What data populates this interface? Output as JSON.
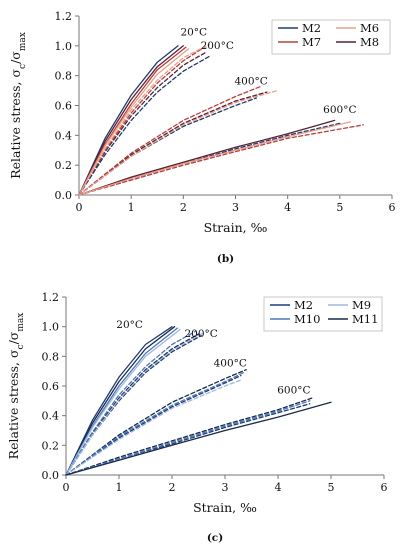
{
  "chart_data": [
    {
      "type": "line",
      "panel_label": "(b)",
      "xlabel": "Strain, ‰",
      "ylabel_main": "Relative stress, σ",
      "ylabel_sub1": "c",
      "ylabel_mid": "/σ",
      "ylabel_sub2": "max",
      "xlim": [
        0,
        6
      ],
      "ylim": [
        0,
        1.2
      ],
      "xticks": [
        "0",
        "1",
        "2",
        "3",
        "4",
        "5",
        "6"
      ],
      "yticks": [
        "0.0",
        "0.2",
        "0.4",
        "0.6",
        "0.8",
        "1.0",
        "1.2"
      ],
      "grid": false,
      "legend_position": "top-right",
      "legend": [
        {
          "label": "M2",
          "color": "#1f3b73"
        },
        {
          "label": "M6",
          "color": "#e8a08a"
        },
        {
          "label": "M7",
          "color": "#b5403f"
        },
        {
          "label": "M8",
          "color": "#5a2030"
        }
      ],
      "annotations": [
        {
          "text": "20°C",
          "x": 2.2,
          "y": 1.07
        },
        {
          "text": "200°C",
          "x": 2.65,
          "y": 0.98
        },
        {
          "text": "400°C",
          "x": 3.3,
          "y": 0.74
        },
        {
          "text": "600°C",
          "x": 5.0,
          "y": 0.55
        }
      ],
      "series": [
        {
          "group": "20°C",
          "style": "solid",
          "color": "#1f3b73",
          "x": [
            0,
            0.5,
            1.0,
            1.5,
            1.9
          ],
          "y": [
            0,
            0.38,
            0.67,
            0.89,
            1.0
          ]
        },
        {
          "group": "20°C",
          "style": "solid",
          "color": "#5a2030",
          "x": [
            0,
            0.5,
            1.0,
            1.5,
            2.0
          ],
          "y": [
            0,
            0.36,
            0.64,
            0.86,
            1.0
          ]
        },
        {
          "group": "20°C",
          "style": "solid",
          "color": "#b5403f",
          "x": [
            0,
            0.5,
            1.0,
            1.5,
            2.05
          ],
          "y": [
            0,
            0.34,
            0.61,
            0.84,
            0.99
          ]
        },
        {
          "group": "20°C",
          "style": "solid",
          "color": "#e8a08a",
          "x": [
            0,
            0.5,
            1.0,
            1.5,
            2.1
          ],
          "y": [
            0,
            0.33,
            0.59,
            0.81,
            0.98
          ]
        },
        {
          "group": "200°C",
          "style": "dashed",
          "color": "#1f3b73",
          "x": [
            0,
            0.5,
            1.0,
            1.5,
            2.0,
            2.5
          ],
          "y": [
            0,
            0.27,
            0.5,
            0.69,
            0.83,
            0.93
          ]
        },
        {
          "group": "200°C",
          "style": "dashed",
          "color": "#5a2030",
          "x": [
            0,
            0.5,
            1.0,
            1.5,
            2.0,
            2.45
          ],
          "y": [
            0,
            0.29,
            0.53,
            0.72,
            0.87,
            0.96
          ]
        },
        {
          "group": "200°C",
          "style": "dashed",
          "color": "#b5403f",
          "x": [
            0,
            0.5,
            1.0,
            1.5,
            2.0,
            2.4
          ],
          "y": [
            0,
            0.3,
            0.55,
            0.75,
            0.9,
            0.99
          ]
        },
        {
          "group": "200°C",
          "style": "dashed",
          "color": "#e8a08a",
          "x": [
            0,
            0.5,
            1.0,
            1.5,
            2.0,
            2.5
          ],
          "y": [
            0,
            0.31,
            0.57,
            0.77,
            0.92,
            1.01
          ]
        },
        {
          "group": "400°C",
          "style": "dashed",
          "color": "#1f3b73",
          "x": [
            0,
            1.0,
            2.0,
            3.0,
            3.4
          ],
          "y": [
            0,
            0.26,
            0.46,
            0.6,
            0.65
          ]
        },
        {
          "group": "400°C",
          "style": "dashed",
          "color": "#5a2030",
          "x": [
            0,
            1.0,
            2.0,
            3.0,
            3.6
          ],
          "y": [
            0,
            0.27,
            0.48,
            0.63,
            0.69
          ]
        },
        {
          "group": "400°C",
          "style": "dashed",
          "color": "#b5403f",
          "x": [
            0,
            1.0,
            2.0,
            3.0,
            3.5
          ],
          "y": [
            0,
            0.28,
            0.5,
            0.66,
            0.73
          ]
        },
        {
          "group": "400°C",
          "style": "dashed",
          "color": "#e8a08a",
          "x": [
            0,
            1.0,
            2.0,
            3.0,
            3.8
          ],
          "y": [
            0,
            0.26,
            0.47,
            0.62,
            0.7
          ]
        },
        {
          "group": "600°C",
          "style": "dashed",
          "color": "#1f3b73",
          "x": [
            0,
            1.0,
            2.0,
            3.0,
            4.0,
            5.0
          ],
          "y": [
            0,
            0.11,
            0.21,
            0.31,
            0.4,
            0.48
          ]
        },
        {
          "group": "600°C",
          "style": "solid",
          "color": "#5a2030",
          "x": [
            0,
            1.0,
            2.0,
            3.0,
            4.0,
            4.9
          ],
          "y": [
            0,
            0.12,
            0.22,
            0.32,
            0.41,
            0.5
          ]
        },
        {
          "group": "600°C",
          "style": "dashed",
          "color": "#b5403f",
          "x": [
            0,
            1.0,
            2.0,
            3.0,
            4.0,
            5.45
          ],
          "y": [
            0,
            0.1,
            0.2,
            0.29,
            0.38,
            0.47
          ]
        },
        {
          "group": "600°C",
          "style": "solid",
          "color": "#e8a08a",
          "x": [
            0,
            1.0,
            2.0,
            3.0,
            4.0,
            5.2
          ],
          "y": [
            0,
            0.11,
            0.21,
            0.3,
            0.39,
            0.49
          ]
        }
      ]
    },
    {
      "type": "line",
      "panel_label": "(c)",
      "xlabel": "Strain, ‰",
      "ylabel_main": "Relative stress, σ",
      "ylabel_sub1": "c",
      "ylabel_mid": "/σ",
      "ylabel_sub2": "max",
      "xlim": [
        0,
        6
      ],
      "ylim": [
        0,
        1.2
      ],
      "xticks": [
        "0",
        "1",
        "2",
        "3",
        "4",
        "5",
        "6"
      ],
      "yticks": [
        "0.0",
        "0.2",
        "0.4",
        "0.6",
        "0.8",
        "1.0",
        "1.2"
      ],
      "grid": false,
      "legend_position": "top-right",
      "legend": [
        {
          "label": "M2",
          "color": "#1f3b73"
        },
        {
          "label": "M9",
          "color": "#9fb8e0"
        },
        {
          "label": "M10",
          "color": "#4a78b8"
        },
        {
          "label": "M11",
          "color": "#1a2a4a"
        }
      ],
      "annotations": [
        {
          "text": "20°C",
          "x": 1.2,
          "y": 0.99
        },
        {
          "text": "200°C",
          "x": 2.55,
          "y": 0.93
        },
        {
          "text": "400°C",
          "x": 3.1,
          "y": 0.73
        },
        {
          "text": "600°C",
          "x": 4.3,
          "y": 0.55
        }
      ],
      "series": [
        {
          "group": "20°C",
          "style": "solid",
          "color": "#1f3b73",
          "x": [
            0,
            0.5,
            1.0,
            1.5,
            2.0
          ],
          "y": [
            0,
            0.37,
            0.66,
            0.88,
            1.0
          ]
        },
        {
          "group": "20°C",
          "style": "solid",
          "color": "#1a2a4a",
          "x": [
            0,
            0.5,
            1.0,
            1.5,
            2.05
          ],
          "y": [
            0,
            0.35,
            0.63,
            0.85,
            1.0
          ]
        },
        {
          "group": "20°C",
          "style": "solid",
          "color": "#4a78b8",
          "x": [
            0,
            0.5,
            1.0,
            1.5,
            2.1
          ],
          "y": [
            0,
            0.33,
            0.6,
            0.82,
            0.99
          ]
        },
        {
          "group": "20°C",
          "style": "solid",
          "color": "#9fb8e0",
          "x": [
            0,
            0.5,
            1.0,
            1.5,
            2.15
          ],
          "y": [
            0,
            0.32,
            0.58,
            0.8,
            0.98
          ]
        },
        {
          "group": "200°C",
          "style": "dashed",
          "color": "#1f3b73",
          "x": [
            0,
            0.5,
            1.0,
            1.5,
            2.0,
            2.55
          ],
          "y": [
            0,
            0.27,
            0.5,
            0.69,
            0.83,
            0.94
          ]
        },
        {
          "group": "200°C",
          "style": "dashed",
          "color": "#1a2a4a",
          "x": [
            0,
            0.5,
            1.0,
            1.5,
            2.0,
            2.5
          ],
          "y": [
            0,
            0.28,
            0.52,
            0.71,
            0.85,
            0.95
          ]
        },
        {
          "group": "200°C",
          "style": "dashed",
          "color": "#4a78b8",
          "x": [
            0,
            0.5,
            1.0,
            1.5,
            2.0,
            2.45
          ],
          "y": [
            0,
            0.29,
            0.54,
            0.73,
            0.88,
            0.97
          ]
        },
        {
          "group": "200°C",
          "style": "dashed",
          "color": "#9fb8e0",
          "x": [
            0,
            0.5,
            1.0,
            1.5,
            2.0,
            2.6
          ],
          "y": [
            0,
            0.27,
            0.51,
            0.7,
            0.84,
            0.96
          ]
        },
        {
          "group": "400°C",
          "style": "dashed",
          "color": "#1f3b73",
          "x": [
            0,
            1.0,
            2.0,
            3.0,
            3.3
          ],
          "y": [
            0,
            0.25,
            0.46,
            0.62,
            0.67
          ]
        },
        {
          "group": "400°C",
          "style": "dashed",
          "color": "#1a2a4a",
          "x": [
            0,
            1.0,
            2.0,
            3.0,
            3.4
          ],
          "y": [
            0,
            0.27,
            0.49,
            0.65,
            0.71
          ]
        },
        {
          "group": "400°C",
          "style": "dashed",
          "color": "#4a78b8",
          "x": [
            0,
            1.0,
            2.0,
            3.0,
            3.35
          ],
          "y": [
            0,
            0.26,
            0.47,
            0.63,
            0.69
          ]
        },
        {
          "group": "400°C",
          "style": "dashed",
          "color": "#9fb8e0",
          "x": [
            0,
            1.0,
            2.0,
            3.0,
            3.3
          ],
          "y": [
            0,
            0.24,
            0.45,
            0.6,
            0.64
          ]
        },
        {
          "group": "600°C",
          "style": "dashed",
          "color": "#1f3b73",
          "x": [
            0,
            1.0,
            2.0,
            3.0,
            4.0,
            4.6
          ],
          "y": [
            0,
            0.11,
            0.21,
            0.32,
            0.42,
            0.48
          ]
        },
        {
          "group": "600°C",
          "style": "dashed",
          "color": "#1a2a4a",
          "x": [
            0,
            1.0,
            2.0,
            3.0,
            4.0,
            4.65
          ],
          "y": [
            0,
            0.12,
            0.23,
            0.34,
            0.44,
            0.52
          ]
        },
        {
          "group": "600°C",
          "style": "dashed",
          "color": "#4a78b8",
          "x": [
            0,
            1.0,
            2.0,
            3.0,
            4.0,
            4.6
          ],
          "y": [
            0,
            0.11,
            0.22,
            0.33,
            0.43,
            0.5
          ]
        },
        {
          "group": "600°C",
          "style": "solid",
          "color": "#1a2a4a",
          "x": [
            0,
            1.0,
            2.0,
            3.0,
            4.0,
            5.0
          ],
          "y": [
            0,
            0.1,
            0.2,
            0.3,
            0.39,
            0.49
          ]
        }
      ]
    }
  ]
}
